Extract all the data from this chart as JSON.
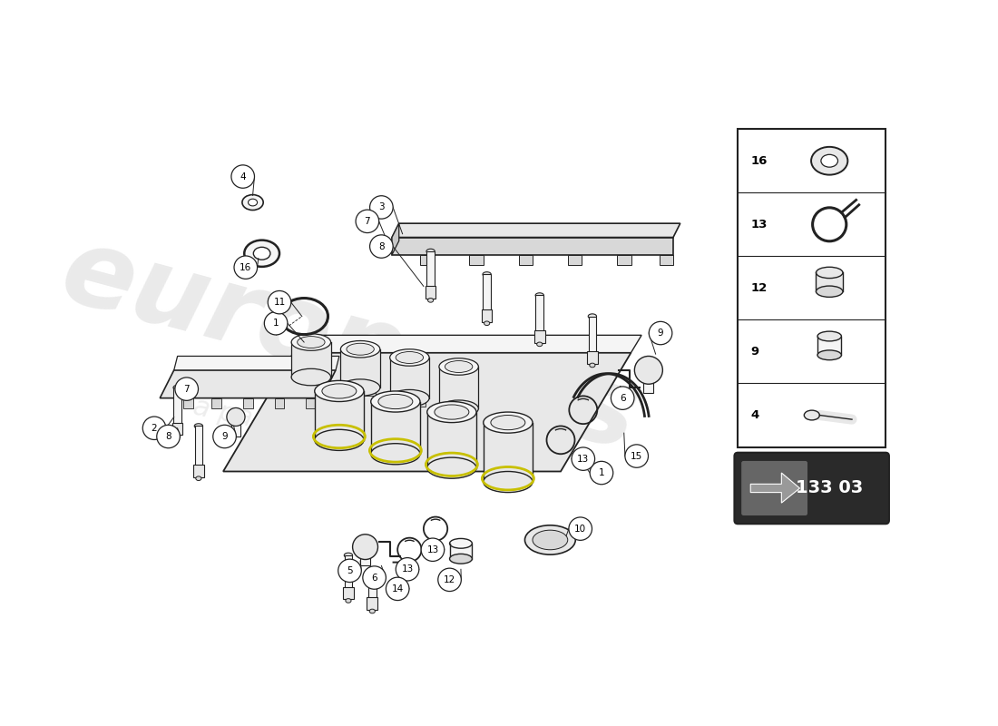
{
  "background_color": "#ffffff",
  "line_color": "#222222",
  "fill_light": "#f5f5f5",
  "fill_mid": "#e8e8e8",
  "fill_dark": "#d8d8d8",
  "accent_yellow": "#c8c000",
  "watermark_color": "#cccccc",
  "catalog_number": "133 03",
  "sidebar_items": [
    "16",
    "13",
    "12",
    "9",
    "4"
  ]
}
